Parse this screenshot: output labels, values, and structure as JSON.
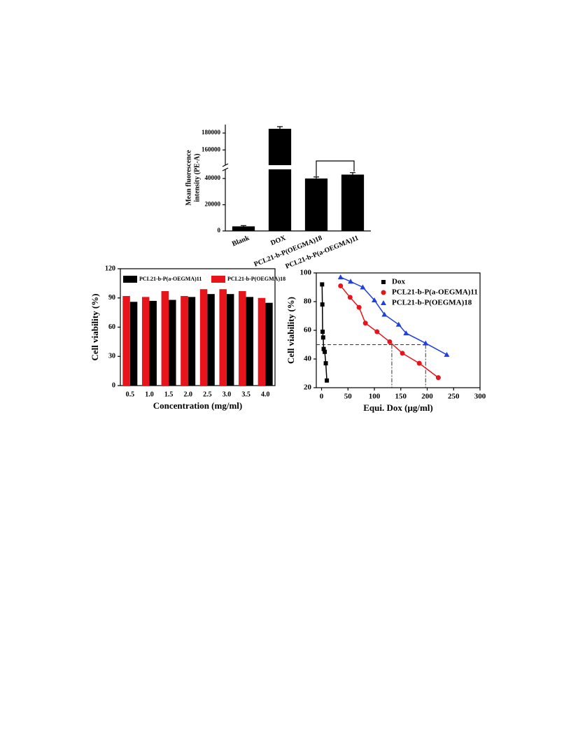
{
  "chart_data": [
    {
      "type": "bar",
      "ylabel": [
        "Mean fluorescence",
        "intensity (PE-A)"
      ],
      "categories": [
        "Blank",
        "DOX",
        "PCL21-b-P(OEGMA)18",
        "PCL21-b-P(a-OEGMA)11"
      ],
      "values": [
        3500,
        185000,
        40000,
        43000
      ],
      "errors": [
        600,
        2500,
        1200,
        1500
      ],
      "color": "#000000",
      "ylim": [
        0,
        190000
      ],
      "ybreak": [
        47000,
        142000
      ],
      "yticks": [
        0,
        20000,
        40000,
        160000,
        180000
      ],
      "frame": false
    },
    {
      "type": "grouped_bar",
      "xlabel": "Concentration (mg/ml)",
      "ylabel": "Cell viability (%)",
      "categories": [
        "0.5",
        "1.0",
        "1.5",
        "2.0",
        "2.5",
        "3.0",
        "3.5",
        "4.0"
      ],
      "series": [
        {
          "name": "PCL21-b-P(a-OEGMA)11",
          "color": "#000000",
          "values": [
            86,
            87,
            88,
            91,
            94,
            94,
            91,
            85
          ]
        },
        {
          "name": "PCL21-b-P(OEGMA)18",
          "color": "#e8141b",
          "values": [
            92,
            91,
            97,
            92,
            99,
            99,
            97,
            90
          ]
        }
      ],
      "ylim": [
        0,
        120
      ],
      "yticks": [
        0,
        30,
        60,
        90,
        120
      ],
      "frame": true,
      "legend": "top"
    },
    {
      "type": "scatter",
      "xlabel": "Equi. Dox (μg/ml)",
      "ylabel": "Cell viability (%)",
      "series": [
        {
          "name": "Dox",
          "color": "#000000",
          "marker": "square",
          "x": [
            1,
            1.5,
            2,
            3,
            4,
            6,
            8,
            10
          ],
          "values": [
            92,
            78,
            59,
            55,
            47,
            45,
            37,
            25
          ]
        },
        {
          "name": "PCL21-b-P(a-OEGMA)11",
          "color": "#e8141b",
          "marker": "circle",
          "x": [
            36,
            54,
            71,
            83,
            105,
            129,
            153,
            185,
            221
          ],
          "values": [
            91,
            83,
            76,
            65,
            59,
            52,
            44,
            37,
            27
          ]
        },
        {
          "name": "PCL21-b-P(OEGMA)18",
          "color": "#1f3fe0",
          "marker": "triangle",
          "x": [
            36,
            55,
            78,
            100,
            119,
            146,
            160,
            197,
            237
          ],
          "values": [
            97,
            94,
            90,
            81,
            71,
            64,
            58,
            51,
            43
          ]
        }
      ],
      "xlim": [
        -10,
        300
      ],
      "xticks": [
        0,
        50,
        100,
        150,
        200,
        250,
        300
      ],
      "ylim": [
        20,
        100
      ],
      "yticks": [
        20,
        40,
        60,
        80,
        100
      ],
      "reference_lines": {
        "y": 50,
        "x": [
          133,
          197
        ]
      },
      "frame": true,
      "legend": "upper right"
    }
  ]
}
